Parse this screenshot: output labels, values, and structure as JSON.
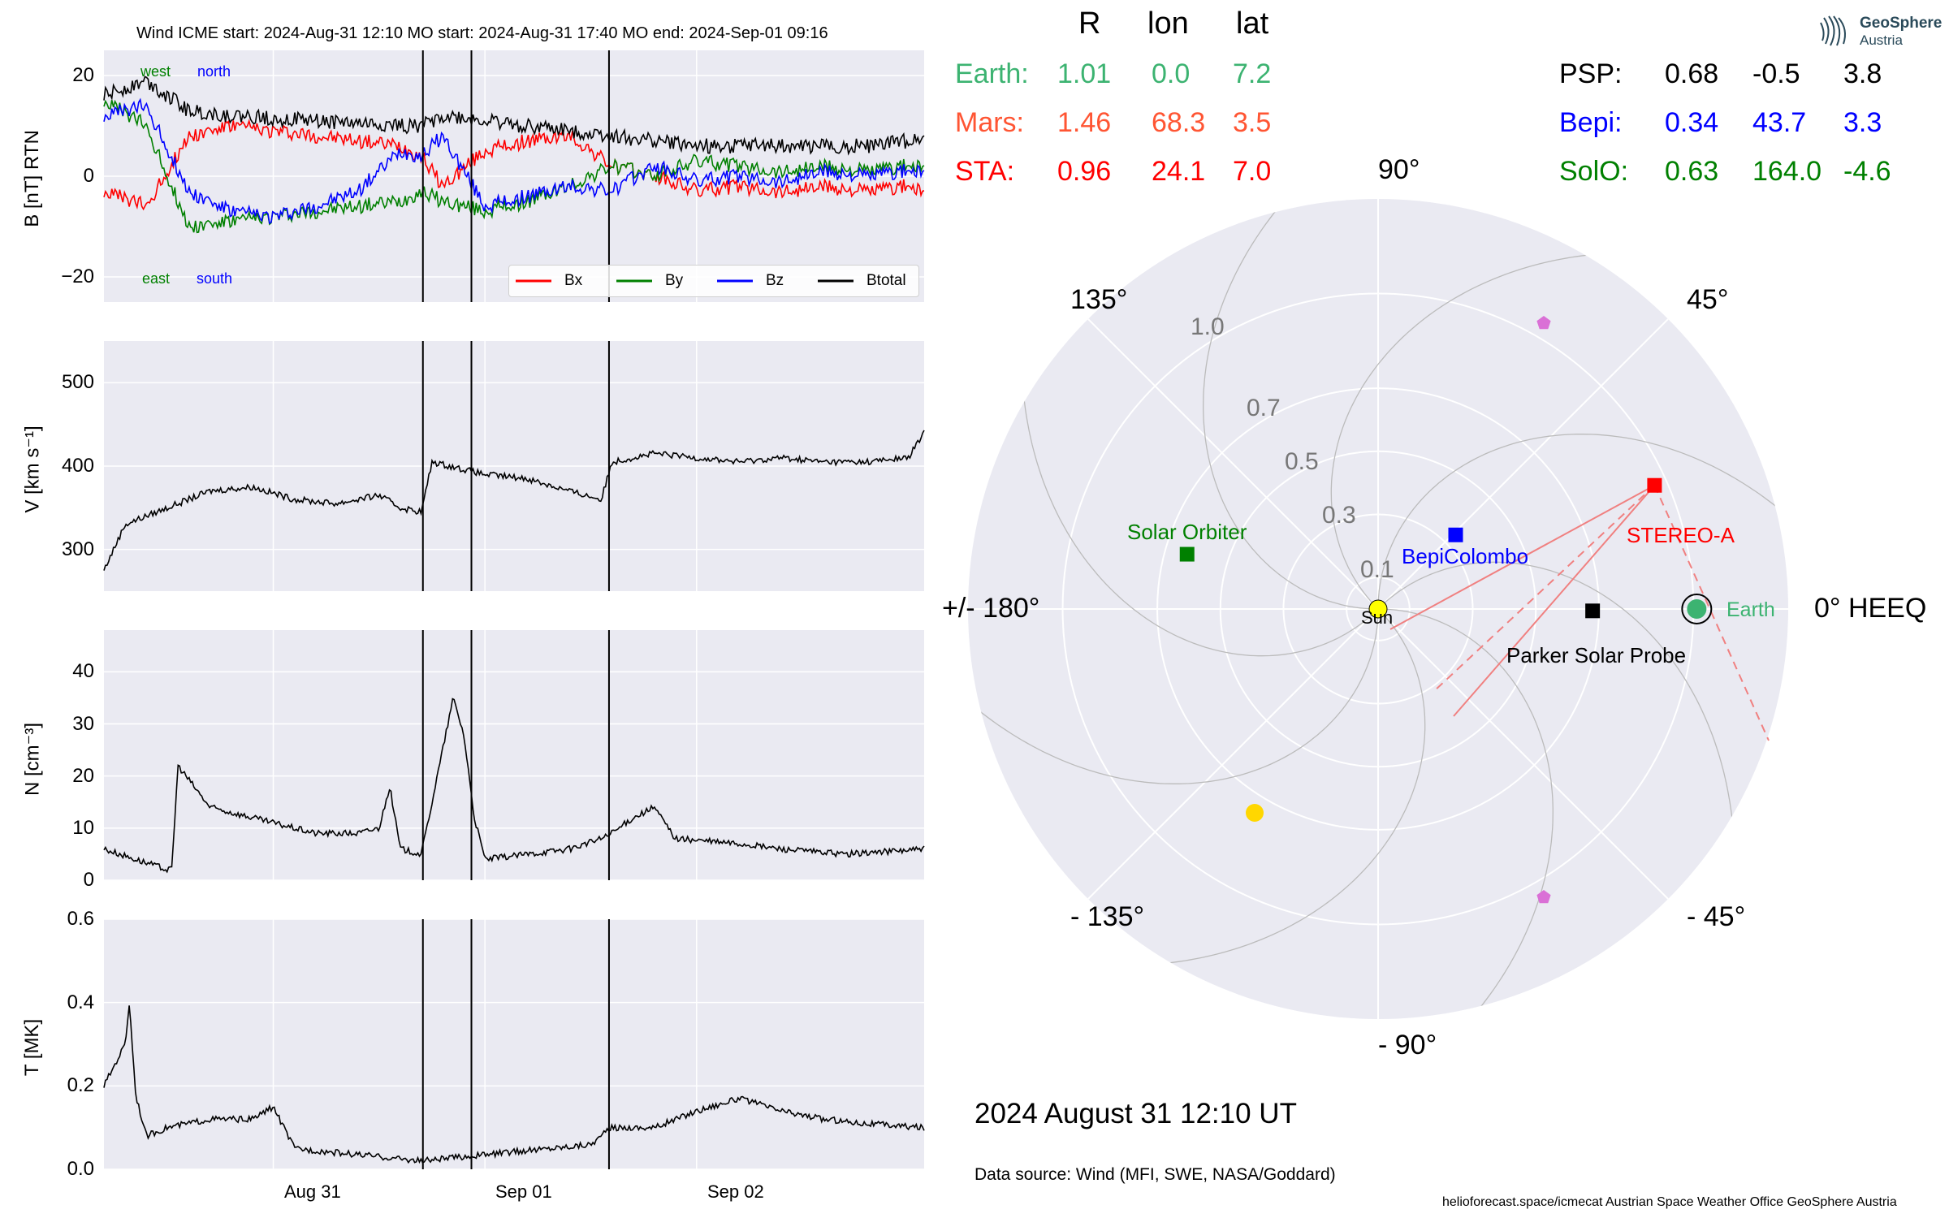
{
  "header": {
    "title": "Wind    ICME start: 2024-Aug-31 12:10   MO start: 2024-Aug-31 17:40   MO end: 2024-Sep-01 09:16"
  },
  "logo": {
    "line1": "GeoSphere",
    "line2": "Austria"
  },
  "timeseries": {
    "x_ticks": [
      "Aug 31",
      "Sep 01",
      "Sep 02"
    ],
    "event_lines_days": [
      1.5069,
      1.7361,
      2.3861
    ],
    "b_panel": {
      "ylabel": "B [nT] RTN",
      "yticks": [
        "20",
        "0",
        "−20"
      ],
      "corner_labels": {
        "west": "west",
        "north": "north",
        "east": "east",
        "south": "south"
      },
      "legend": [
        "Bx",
        "By",
        "Bz",
        "Btotal"
      ]
    },
    "v_panel": {
      "ylabel": "V [km s⁻¹]",
      "yticks": [
        "500",
        "400",
        "300"
      ]
    },
    "n_panel": {
      "ylabel": "N [cm⁻³]",
      "yticks": [
        "40",
        "30",
        "20",
        "10",
        "0"
      ]
    },
    "t_panel": {
      "ylabel": "T [MK]",
      "yticks": [
        "0.6",
        "0.4",
        "0.2",
        "0.0"
      ]
    }
  },
  "positions_table": {
    "headers": [
      "R",
      "lon",
      "lat"
    ],
    "rows_left": [
      {
        "name": "Earth:",
        "R": "1.01",
        "lon": "0.0",
        "lat": "7.2",
        "color": "#3cb371"
      },
      {
        "name": "Mars:",
        "R": "1.46",
        "lon": "68.3",
        "lat": "3.5",
        "color": "#ff5533"
      },
      {
        "name": "STA:",
        "R": "0.96",
        "lon": "24.1",
        "lat": "7.0",
        "color": "#ff0000"
      }
    ],
    "rows_right": [
      {
        "name": "PSP:",
        "R": "0.68",
        "lon": "-0.5",
        "lat": "3.8",
        "color": "#000000"
      },
      {
        "name": "Bepi:",
        "R": "0.34",
        "lon": "43.7",
        "lat": "3.3",
        "color": "#0000ff"
      },
      {
        "name": "SolO:",
        "R": "0.63",
        "lon": "164.0",
        "lat": "-4.6",
        "color": "#008000"
      }
    ]
  },
  "polar": {
    "angle_labels": {
      "a90": "90°",
      "a45": "45°",
      "a135": "135°",
      "a0": "0° HEEQ",
      "a180": "+/- 180°",
      "am45": "- 45°",
      "am135": "- 135°",
      "am90": "- 90°"
    },
    "radial_labels": [
      "0.1",
      "0.3",
      "0.5",
      "0.7",
      "1.0"
    ],
    "bodies": {
      "sun": "Sun",
      "solo": "Solar Orbiter",
      "bepi": "BepiColombo",
      "sta": "STEREO-A",
      "earth": "Earth",
      "psp": "Parker Solar Probe"
    }
  },
  "footer": {
    "date": "2024 August 31  12:10 UT",
    "source": "Data source: Wind (MFI, SWE, NASA/Goddard)",
    "credit": "helioforecast.space/icmecat   Austrian Space Weather Office   GeoSphere Austria"
  },
  "chart_data": [
    {
      "type": "line",
      "title": "Wind    ICME start: 2024-Aug-31 12:10   MO start: 2024-Aug-31 17:40   MO end: 2024-Sep-01 09:16",
      "ylabel": "B [nT] RTN",
      "xlim": [
        "2024-08-30 00:00",
        "2024-09-02 21:00"
      ],
      "ylim": [
        -25,
        25
      ],
      "x_days": [
        0.0,
        0.2,
        0.4,
        0.6,
        0.8,
        1.0,
        1.2,
        1.4,
        1.5,
        1.6,
        1.8,
        2.0,
        2.2,
        2.4,
        2.6,
        2.8,
        3.0,
        3.2,
        3.4,
        3.6,
        3.8,
        3.875
      ],
      "series": [
        {
          "name": "Bx",
          "color": "#ff0000",
          "values": [
            -3,
            -6,
            8,
            10,
            9,
            8,
            7,
            6,
            4,
            -2,
            5,
            7,
            8,
            2,
            0,
            -3,
            -2,
            -3,
            -2,
            -3,
            -2,
            -3
          ]
        },
        {
          "name": "By",
          "color": "#008000",
          "values": [
            15,
            10,
            -10,
            -9,
            -8,
            -7,
            -6,
            -5,
            -3,
            -5,
            -7,
            -5,
            -2,
            2,
            0,
            3,
            2,
            1,
            2,
            1,
            2,
            2
          ]
        },
        {
          "name": "Bz",
          "color": "#0000ff",
          "values": [
            12,
            14,
            -3,
            -7,
            -8,
            -6,
            -3,
            5,
            4,
            8,
            -6,
            -4,
            -2,
            -3,
            2,
            -1,
            0,
            -1,
            1,
            0,
            1,
            1
          ]
        },
        {
          "name": "Btotal",
          "color": "#000000",
          "values": [
            16,
            19,
            13,
            12,
            11.5,
            11,
            10.5,
            10,
            10,
            12,
            11,
            10,
            9,
            8,
            7,
            6,
            6,
            6,
            6,
            6,
            7,
            8
          ]
        }
      ]
    },
    {
      "type": "line",
      "ylabel": "V [km s⁻¹]",
      "ylim": [
        250,
        550
      ],
      "x_days": [
        0.0,
        0.1,
        0.3,
        0.5,
        0.7,
        0.9,
        1.1,
        1.3,
        1.4,
        1.5,
        1.55,
        1.8,
        2.0,
        2.2,
        2.35,
        2.4,
        2.6,
        2.8,
        3.0,
        3.2,
        3.4,
        3.6,
        3.8,
        3.875
      ],
      "series": [
        {
          "name": "V",
          "color": "#000000",
          "values": [
            275,
            330,
            350,
            370,
            375,
            360,
            355,
            365,
            350,
            345,
            405,
            390,
            385,
            370,
            360,
            405,
            415,
            410,
            405,
            410,
            405,
            405,
            410,
            440
          ]
        }
      ]
    },
    {
      "type": "line",
      "ylabel": "N [cm⁻³]",
      "ylim": [
        0,
        48
      ],
      "x_days": [
        0.0,
        0.15,
        0.3,
        0.32,
        0.35,
        0.5,
        0.6,
        0.8,
        1.0,
        1.2,
        1.3,
        1.35,
        1.4,
        1.5,
        1.6,
        1.65,
        1.7,
        1.75,
        1.8,
        2.0,
        2.2,
        2.35,
        2.4,
        2.5,
        2.6,
        2.7,
        3.0,
        3.2,
        3.5,
        3.875
      ],
      "series": [
        {
          "name": "N",
          "color": "#000000",
          "values": [
            6,
            4,
            2,
            2,
            22,
            14,
            13,
            11,
            9,
            9,
            10,
            18,
            6,
            5,
            25,
            35,
            28,
            12,
            4,
            5,
            6,
            8,
            9,
            12,
            14,
            8,
            7,
            6,
            5,
            6
          ]
        }
      ]
    },
    {
      "type": "line",
      "ylabel": "T [MK]",
      "ylim": [
        0,
        0.6
      ],
      "x_days": [
        0.0,
        0.05,
        0.1,
        0.12,
        0.15,
        0.2,
        0.3,
        0.5,
        0.7,
        0.8,
        0.9,
        1.1,
        1.3,
        1.5,
        1.7,
        1.9,
        2.1,
        2.3,
        2.4,
        2.6,
        2.8,
        3.0,
        3.2,
        3.4,
        3.6,
        3.875
      ],
      "series": [
        {
          "name": "T",
          "color": "#000000",
          "values": [
            0.2,
            0.25,
            0.3,
            0.4,
            0.18,
            0.08,
            0.1,
            0.12,
            0.12,
            0.15,
            0.05,
            0.04,
            0.03,
            0.02,
            0.03,
            0.04,
            0.05,
            0.06,
            0.1,
            0.1,
            0.14,
            0.17,
            0.14,
            0.12,
            0.11,
            0.1
          ]
        }
      ]
    },
    {
      "type": "scatter",
      "title": "2024 August 31  12:10 UT",
      "projection": "polar",
      "r_ticks": [
        0.1,
        0.3,
        0.5,
        0.7,
        1.0
      ],
      "points": [
        {
          "name": "Sun",
          "r": 0.0,
          "lon": 0.0,
          "color": "#ffff00"
        },
        {
          "name": "Earth",
          "r": 1.01,
          "lon": 0.0,
          "color": "#3cb371"
        },
        {
          "name": "STEREO-A",
          "r": 0.96,
          "lon": 24.1,
          "color": "#ff0000"
        },
        {
          "name": "Parker Solar Probe",
          "r": 0.68,
          "lon": -0.5,
          "color": "#000000"
        },
        {
          "name": "BepiColombo",
          "r": 0.34,
          "lon": 43.7,
          "color": "#0000ff"
        },
        {
          "name": "Solar Orbiter",
          "r": 0.63,
          "lon": 164.0,
          "color": "#008000"
        }
      ]
    }
  ]
}
